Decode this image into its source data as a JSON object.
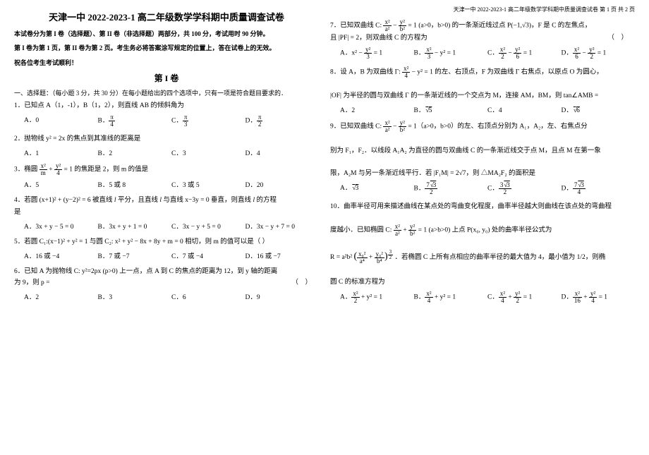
{
  "header": {
    "right": "天津一中 2022-2023-1 高二年级数学学科期中质量调查试卷  第 1 页 共 2 页"
  },
  "title": "天津一中 2022-2023-1 高二年级数学学科期中质量调查试卷",
  "instr1": "本试卷分为第 I 卷（选择题）、第 II 卷（非选择题）两部分，共 100 分，考试用时 90 分钟。",
  "instr2": "第 I 卷为第 1 页，第 II 卷为第 2 页。考生务必将答案涂写规定的位置上，答在试卷上的无效。",
  "instr3": "祝各位考生考试顺利！",
  "part1": "第 I 卷",
  "sectionA": "一、选择题：（每小题 3 分，共 30 分）在每小题给出的四个选项中，只有一项是符合题目要求的．",
  "q1": {
    "stem": "1．已知点 A（1，-1），B（1，2），则直线 AB 的倾斜角为",
    "A": "0",
    "B": "π/4",
    "C": "π/3",
    "D": "π/2"
  },
  "q2": {
    "stem": "2．抛物线 y² = 2x 的焦点到其准线的距离是",
    "A": "1",
    "B": "2",
    "C": "3",
    "D": "4"
  },
  "q3": {
    "stem": "3．椭圆  的焦距是 2，则 m 的值是",
    "A": "5",
    "B": "5 或 8",
    "C": "3 或 5",
    "D": "20"
  },
  "q4": {
    "stem": "4．若圆 (x+1)² + (y−2)² = 6 被直线 l 平分，且直线 l 与直线 x−3y = 0 垂直，则直线 l 的方程是",
    "A": "3x + y − 5 = 0",
    "B": "3x + y + 1 = 0",
    "C": "3x − y + 5 = 0",
    "D": "3x − y + 7 = 0"
  },
  "q5": {
    "stem": "5．若圆 C₁:(x−1)² + y² = 1 与圆 C₂: x² + y² − 8x + 8y + m = 0 相切，则 m 的值可以是（  ）",
    "A": "16 或 −4",
    "B": "7 或 −7",
    "C": "7 或 −4",
    "D": "16 或 −7"
  },
  "q6": {
    "stem": "6．已知 A 为抛物线 C: y² = 2px (p>0) 上一点，点 A 到 C 的焦点的距离为 12，到 y 轴的距离为 9，则 p =",
    "A": "2",
    "B": "3",
    "C": "6",
    "D": "9"
  },
  "q7": {
    "stem1": "7．已知双曲线 C:",
    "stem2": "= 1 (a>0，b>0) 的一条渐近线过点 P(−1,√3)，F 是 C 的左焦点，",
    "stem3": "且 |PF| = 2，则双曲线 C 的方程为",
    "A_n": "x² −",
    "A_d": "y²/3",
    "A_e": "= 1",
    "B_n": "x²/3",
    "B_e": "− y² = 1",
    "C_n": "x²/2 −",
    "C_d": "y²/6",
    "C_e": "= 1",
    "D_n": "x²/6 −",
    "D_d": "y²/2",
    "D_e": "= 1"
  },
  "q8": {
    "stem1": "8．设 A，B 为双曲线 Γ:",
    "stem2": "− y² = 1 的左、右顶点，F 为双曲线 Γ 右焦点，以原点 O 为圆心，",
    "stem3": "|OF| 为半径的圆与双曲线 Γ 的一条渐近线的一个交点为 M，连接 AM，BM，则 tan∠AMB =",
    "A": "2",
    "B": "√5",
    "C": "4",
    "D": "√6"
  },
  "q9": {
    "stem1": "9．已知双曲线 C:",
    "stem2": "= 1（a>0，b>0）的左、右顶点分别为 A₁，A₂，左、右焦点分",
    "stem3": "别为 F₁，F₂．以线段 A₁A₂ 为直径的圆与双曲线 C 的一条渐近线交于点 M，且点 M 在第一象",
    "stem4": "限，A₂M 与另一条渐近线平行．若 |F₁M| = 2√7，则 △MA₂F₂ 的面积是",
    "A": "√3",
    "B": "7√3/2",
    "C": "3√3/2",
    "D": "7√3/4"
  },
  "q10": {
    "stem1": "10．曲率半径可用来描述曲线在某点处的弯曲变化程度，曲率半径越大则曲线在该点处的弯曲程",
    "stem2": "度越小．已知椭圆 C:",
    "stem3": "= 1 (a>b>0) 上点 P(x₀, y₀) 处的曲率半径公式为",
    "stem4R": "R = a²b²",
    "stem5": "．若椭圆 C 上所有点相应的曲率半径的最大值为 4，最小值为 1/2，则椭",
    "stem6": "圆 C 的标准方程为",
    "A": "x²/2 + y² = 1",
    "B": "x²/4 + y² = 1",
    "C": "x²/4 + y²/2 = 1",
    "D": "x²/16 + y²/4 = 1"
  }
}
